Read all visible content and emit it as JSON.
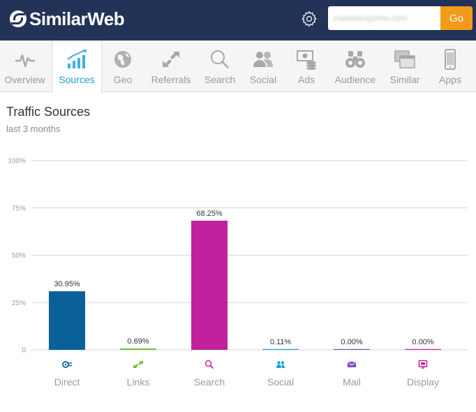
{
  "header": {
    "brand": "SimilarWeb",
    "search_placeholder": "marketergizmo.com",
    "go_label": "Go"
  },
  "tabs": [
    {
      "label": "Overview",
      "icon": "pulse-icon",
      "active": false
    },
    {
      "label": "Sources",
      "icon": "rising-bars-icon",
      "active": true
    },
    {
      "label": "Geo",
      "icon": "globe-icon",
      "active": false
    },
    {
      "label": "Referrals",
      "icon": "arrows-icon",
      "active": false
    },
    {
      "label": "Search",
      "icon": "magnifier-icon",
      "active": false
    },
    {
      "label": "Social",
      "icon": "people-icon",
      "active": false
    },
    {
      "label": "Ads",
      "icon": "money-icon",
      "active": false
    },
    {
      "label": "Audience",
      "icon": "binoculars-icon",
      "active": false
    },
    {
      "label": "Similar",
      "icon": "windows-icon",
      "active": false
    },
    {
      "label": "Apps",
      "icon": "phone-icon",
      "active": false
    }
  ],
  "main": {
    "title": "Traffic Sources",
    "subtitle": "last 3 months"
  },
  "colors": {
    "header_bg": "#233257",
    "accent": "#1d9bd8",
    "go_button": "#f29a1a"
  },
  "chart_data": {
    "type": "bar",
    "categories": [
      "Direct",
      "Links",
      "Search",
      "Social",
      "Mail",
      "Display"
    ],
    "values": [
      30.95,
      0.69,
      68.25,
      0.11,
      0.0,
      0.0
    ],
    "value_labels": [
      "30.95%",
      "0.69%",
      "68.25%",
      "0.11%",
      "0.00%",
      "0.00%"
    ],
    "colors": [
      "#0a6199",
      "#6bbf2f",
      "#c1219c",
      "#1aa1d6",
      "#7b4fb8",
      "#c1219c"
    ],
    "icons": [
      "direct-icon",
      "links-icon",
      "search-icon",
      "social-icon",
      "mail-icon",
      "display-icon"
    ],
    "yticks": [
      0,
      25,
      50,
      75,
      100
    ],
    "ytick_labels": [
      "0",
      "25%",
      "50%",
      "75%",
      "100%"
    ],
    "ylim": [
      0,
      100
    ],
    "grid": true
  }
}
